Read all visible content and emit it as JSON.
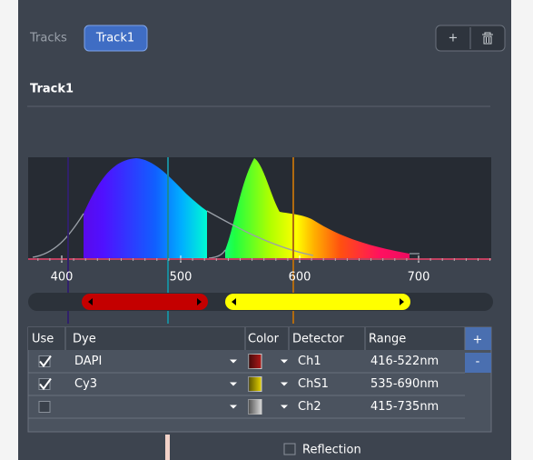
{
  "tabs": [
    "Tracks",
    "Track1"
  ],
  "section_title": "Track1",
  "spectrum": {
    "axis_labels": [
      400,
      500,
      600,
      700
    ]
  },
  "table": {
    "header": [
      "Use",
      "Dye",
      "Color",
      "Detector",
      "Range"
    ],
    "add_button": "+",
    "remove_button": "-",
    "rows": [
      {
        "checked": true,
        "dye": "DAPI",
        "color": "#b01818",
        "detector": "Ch1",
        "range": "416-522nm"
      },
      {
        "checked": true,
        "dye": "Cy3",
        "color": "#e6d400",
        "detector": "ChS1",
        "range": "535-690nm"
      },
      {
        "checked": false,
        "color": "#d8d8d8",
        "detector": "Ch2",
        "range": "415-735nm"
      }
    ]
  },
  "add_track_button": "+",
  "reflection": {
    "checked": false,
    "label": "Reflection"
  }
}
